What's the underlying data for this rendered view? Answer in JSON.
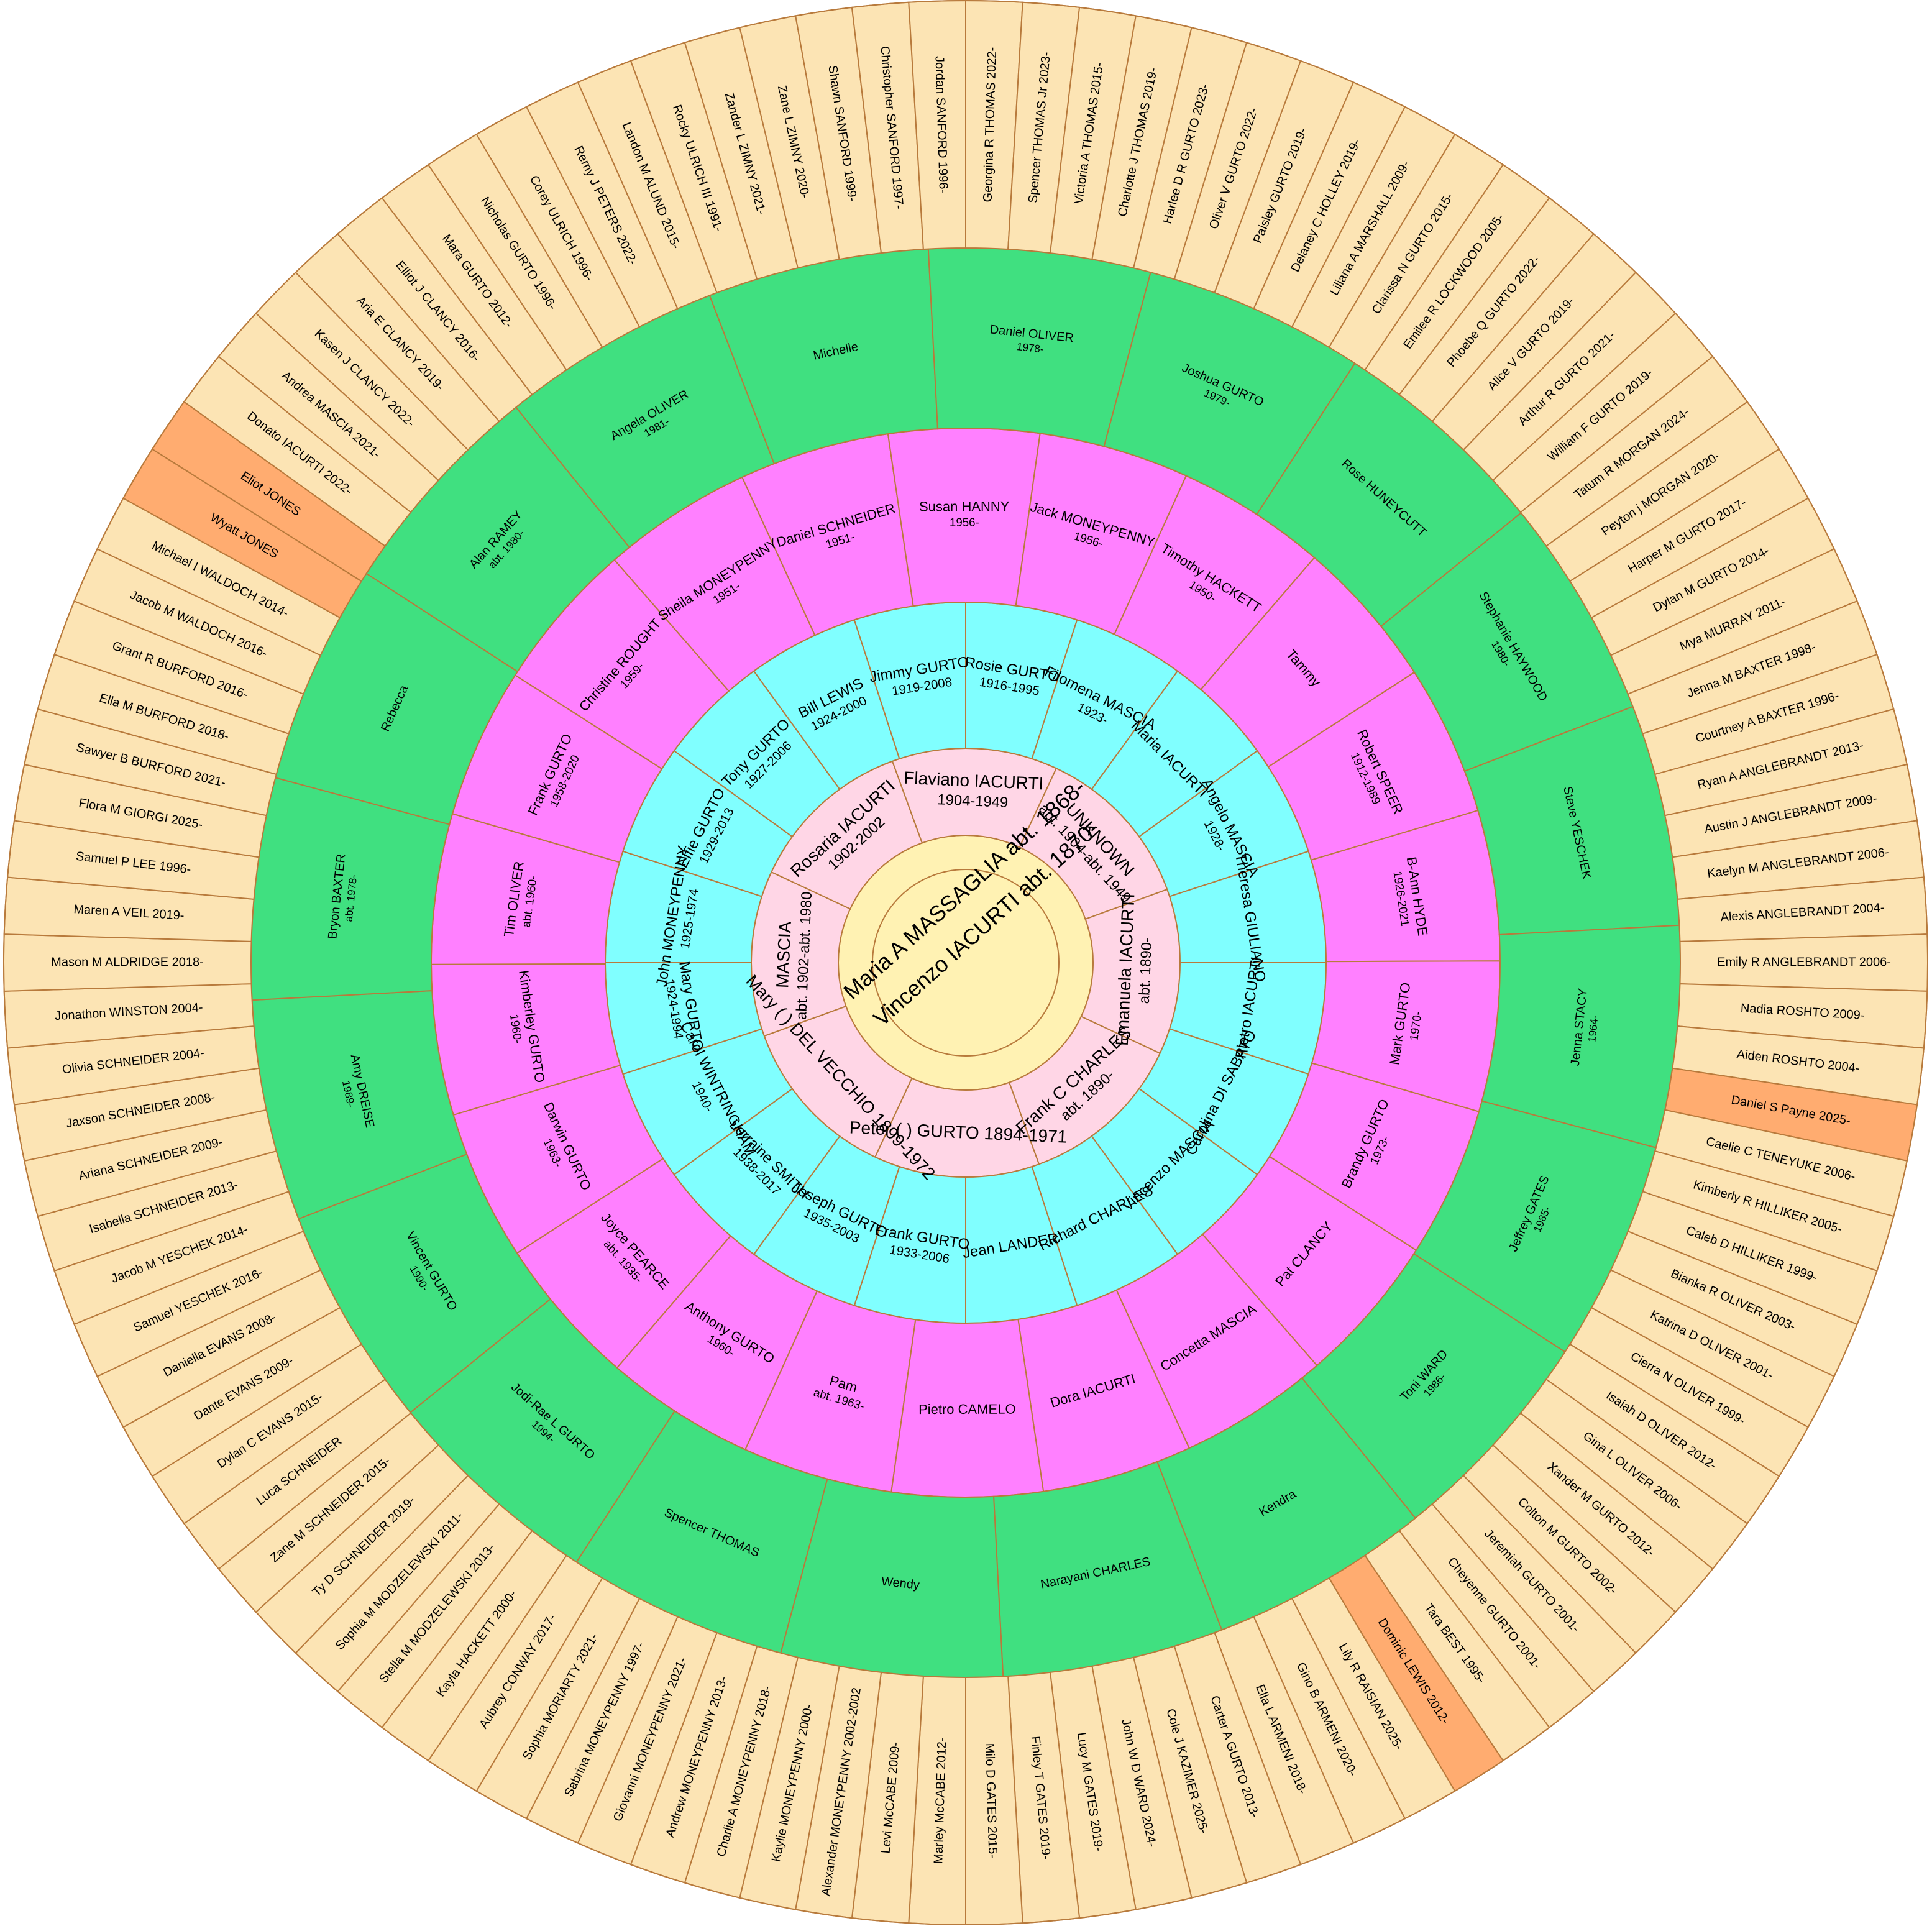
{
  "colors": {
    "ring0": "#fff2b3",
    "ring1": "#ffd6e6",
    "ring2": "#80ffff",
    "pink": "#ff80ff",
    "green": "#40e080",
    "tan": "#fce4b4",
    "orange": "#ffac70",
    "line": "#b87a3c",
    "background": "#ffffff"
  },
  "center": {
    "names": [
      "Maria A MASSAGLIA abt. 1868-",
      "Vincenzo IACURTI abt. 1870-"
    ]
  },
  "ring1": [
    {
      "name": "Peter ( ) GURTO 1894-1971",
      "lines": [],
      "color": "ring1"
    },
    {
      "name": "Mary ( ) DEL VECCHIO 1899-1972",
      "lines": [],
      "color": "ring1"
    },
    {
      "name": "MASCIA",
      "lines": [
        "abt. 1902-abt. 1980"
      ],
      "color": "ring1"
    },
    {
      "name": "Rosaria IACURTI",
      "lines": [
        "1902-2002"
      ],
      "color": "ring1"
    },
    {
      "name": "Flaviano IACURTI",
      "lines": [
        "1904-1949"
      ],
      "color": "ring1"
    },
    {
      "name": "UNKNOWN",
      "lines": [
        "abt. 1904-abt. 1949"
      ],
      "color": "ring1"
    },
    {
      "name": "Emanuela IACURTI",
      "lines": [
        "abt. 1890-"
      ],
      "color": "ring1"
    },
    {
      "name": "Frank C CHARLES",
      "lines": [
        "abt. 1890-"
      ],
      "color": "ring1"
    }
  ],
  "ring2": [
    {
      "name": "Frank GURTO",
      "lines": [
        "1933-2006"
      ],
      "color": "ring2"
    },
    {
      "name": "Joseph GURTO",
      "lines": [
        "1935-2003"
      ],
      "color": "ring2"
    },
    {
      "name": "Lorraine SMITH",
      "lines": [
        "1938-2017"
      ],
      "color": "ring2"
    },
    {
      "name": "Carol WINTRINGHAM",
      "lines": [
        "1940-"
      ],
      "color": "ring2"
    },
    {
      "name": "Mary GURTO",
      "lines": [
        "1924-1994"
      ],
      "color": "ring2"
    },
    {
      "name": "John MONEYPENNY",
      "lines": [
        "1925-1974"
      ],
      "color": "ring2"
    },
    {
      "name": "Effie GURTO",
      "lines": [
        "1929-2013"
      ],
      "color": "ring2"
    },
    {
      "name": "Tony GURTO",
      "lines": [
        "1927-2006"
      ],
      "color": "ring2"
    },
    {
      "name": "Bill LEWIS",
      "lines": [
        "1924-2000"
      ],
      "color": "ring2"
    },
    {
      "name": "Jimmy GURTO",
      "lines": [
        "1919-2008"
      ],
      "color": "ring2"
    },
    {
      "name": "Rosie GURTO",
      "lines": [
        "1916-1995"
      ],
      "color": "ring2"
    },
    {
      "name": "Filomena MASCIA",
      "lines": [
        "1923-"
      ],
      "color": "ring2"
    },
    {
      "name": "Maria IACURTI",
      "lines": [],
      "color": "ring2"
    },
    {
      "name": "Angelo MASCIA",
      "lines": [
        "1928-"
      ],
      "color": "ring2"
    },
    {
      "name": "Theresa GIULIANO",
      "lines": [],
      "color": "ring2"
    },
    {
      "name": "Pietro IACURTI",
      "lines": [],
      "color": "ring2"
    },
    {
      "name": "Carolina DI SABATO",
      "lines": [],
      "color": "ring2"
    },
    {
      "name": "Vincenzo MASCIA",
      "lines": [],
      "color": "ring2"
    },
    {
      "name": "Richard CHARLES",
      "lines": [],
      "color": "ring2"
    },
    {
      "name": "Jean LANDER",
      "lines": [],
      "color": "ring2"
    }
  ],
  "ring3": [
    {
      "name": "Pam",
      "lines": [
        "abt. 1963-"
      ],
      "color": "pink"
    },
    {
      "name": "Anthony GURTO",
      "lines": [
        "1960-"
      ],
      "color": "pink"
    },
    {
      "name": "Joyce PEARCE",
      "lines": [
        "abt. 1935-"
      ],
      "color": "pink"
    },
    {
      "name": "Darwin GURTO",
      "lines": [
        "1963-"
      ],
      "color": "pink"
    },
    {
      "name": "Kimberley GURTO",
      "lines": [
        "1960-"
      ],
      "color": "pink"
    },
    {
      "name": "Tim OLIVER",
      "lines": [
        "abt. 1960-"
      ],
      "color": "pink"
    },
    {
      "name": "Frank GURTO",
      "lines": [
        "1958-2020"
      ],
      "color": "pink"
    },
    {
      "name": "Christine ROUGHT",
      "lines": [
        "1959-"
      ],
      "color": "pink"
    },
    {
      "name": "Sheila MONEYPENNY",
      "lines": [
        "1951-"
      ],
      "color": "pink"
    },
    {
      "name": "Daniel SCHNEIDER",
      "lines": [
        "1951-"
      ],
      "color": "pink"
    },
    {
      "name": "Susan HANNY",
      "lines": [
        "1956-"
      ],
      "color": "pink"
    },
    {
      "name": "Jack MONEYPENNY",
      "lines": [
        "1956-"
      ],
      "color": "pink"
    },
    {
      "name": "Timothy HACKETT",
      "lines": [
        "1950-"
      ],
      "color": "pink"
    },
    {
      "name": "Tammy",
      "lines": [],
      "color": "pink"
    },
    {
      "name": "Robert SPEER",
      "lines": [
        "1912-1989"
      ],
      "color": "pink"
    },
    {
      "name": "B-Ann HYDE",
      "lines": [
        "1926-2021"
      ],
      "color": "pink"
    },
    {
      "name": "Mark GURTO",
      "lines": [
        "1970-"
      ],
      "color": "pink"
    },
    {
      "name": "Brandy GURTO",
      "lines": [
        "1973-"
      ],
      "color": "pink"
    },
    {
      "name": "Pat CLANCY",
      "lines": [],
      "color": "pink"
    },
    {
      "name": "Concetta MASCIA",
      "lines": [],
      "color": "pink"
    },
    {
      "name": "Dora IACURTI",
      "lines": [],
      "color": "pink"
    },
    {
      "name": "Pietro CAMELO",
      "lines": [],
      "color": "pink"
    }
  ],
  "ring4": [
    {
      "name": "Spencer THOMAS",
      "lines": [],
      "color": "green"
    },
    {
      "name": "Jodi-Rae L GURTO",
      "lines": [
        "1994-"
      ],
      "color": "green"
    },
    {
      "name": "Vincent GURTO",
      "lines": [
        "1990-"
      ],
      "color": "green"
    },
    {
      "name": "Amy DREISE",
      "lines": [
        "1989-"
      ],
      "color": "green"
    },
    {
      "name": "Bryon BAXTER",
      "lines": [
        "abt. 1978-"
      ],
      "color": "green"
    },
    {
      "name": "Rebecca",
      "lines": [],
      "color": "green"
    },
    {
      "name": "Alan RAMEY",
      "lines": [
        "abt. 1980-"
      ],
      "color": "green"
    },
    {
      "name": "Angela OLIVER",
      "lines": [
        "1981-"
      ],
      "color": "green"
    },
    {
      "name": "Michelle",
      "lines": [],
      "color": "green"
    },
    {
      "name": "Daniel OLIVER",
      "lines": [
        "1978-"
      ],
      "color": "green"
    },
    {
      "name": "Joshua GURTO",
      "lines": [
        "1979-"
      ],
      "color": "green"
    },
    {
      "name": "Rose HUNEYCUTT",
      "lines": [],
      "color": "green"
    },
    {
      "name": "Stephanie HAYWOOD",
      "lines": [
        "1980-"
      ],
      "color": "green"
    },
    {
      "name": "Steve YESCHEK",
      "lines": [],
      "color": "green"
    },
    {
      "name": "Jenna STACY",
      "lines": [
        "1964-"
      ],
      "color": "green"
    },
    {
      "name": "Jeffrey GATES",
      "lines": [
        "1985-"
      ],
      "color": "green"
    },
    {
      "name": "Toni WARD",
      "lines": [
        "1986-"
      ],
      "color": "green"
    },
    {
      "name": "Kendra",
      "lines": [],
      "color": "green"
    },
    {
      "name": "Narayani CHARLES",
      "lines": [],
      "color": "green"
    },
    {
      "name": "Wendy",
      "lines": [],
      "color": "green"
    }
  ],
  "ring5": [
    {
      "name": "Georgina R THOMAS 2022-",
      "color": "tan"
    },
    {
      "name": "Spencer THOMAS Jr 2023-",
      "color": "tan"
    },
    {
      "name": "Victoria A THOMAS 2015-",
      "color": "tan"
    },
    {
      "name": "Charlotte J THOMAS 2019-",
      "color": "tan"
    },
    {
      "name": "Harlee D R GURTO 2023-",
      "color": "tan"
    },
    {
      "name": "Oliver V GURTO 2022-",
      "color": "tan"
    },
    {
      "name": "Paisley GURTO 2019-",
      "color": "tan"
    },
    {
      "name": "Delaney C HOLLEY 2019-",
      "color": "tan"
    },
    {
      "name": "Liliana A MARSHALL 2009-",
      "color": "tan"
    },
    {
      "name": "Clarissa N GURTO 2015-",
      "color": "tan"
    },
    {
      "name": "Emilee R LOCKWOOD 2005-",
      "color": "tan"
    },
    {
      "name": "Phoebe Q GURTO 2022-",
      "color": "tan"
    },
    {
      "name": "Alice V GURTO 2019-",
      "color": "tan"
    },
    {
      "name": "Arthur R GURTO 2021-",
      "color": "tan"
    },
    {
      "name": "William F GURTO 2019-",
      "color": "tan"
    },
    {
      "name": "Tatum R MORGAN 2024-",
      "color": "tan"
    },
    {
      "name": "Peyton j MORGAN 2020-",
      "color": "tan"
    },
    {
      "name": "Harper M GURTO 2017-",
      "color": "tan"
    },
    {
      "name": "Dylan M GURTO 2014-",
      "color": "tan"
    },
    {
      "name": "Mya MURRAY 2011-",
      "color": "tan"
    },
    {
      "name": "Jenna M BAXTER 1998-",
      "color": "tan"
    },
    {
      "name": "Courtney A BAXTER 1996-",
      "color": "tan"
    },
    {
      "name": "Ryan A ANGLEBRANDT 2013-",
      "color": "tan"
    },
    {
      "name": "Austin J ANGLEBRANDT 2009-",
      "color": "tan"
    },
    {
      "name": "Kaelyn M ANGLEBRANDT 2006-",
      "color": "tan"
    },
    {
      "name": "Alexis ANGLEBRANDT 2004-",
      "color": "tan"
    },
    {
      "name": "Emily R ANGLEBRANDT 2006-",
      "color": "tan"
    },
    {
      "name": "Nadia ROSHTO 2009-",
      "color": "tan"
    },
    {
      "name": "Aiden ROSHTO 2004-",
      "color": "tan"
    },
    {
      "name": "Daniel S Payne 2025-",
      "color": "orange"
    },
    {
      "name": "Caelie C TENEYUKE 2006-",
      "color": "tan"
    },
    {
      "name": "Kimberly R HILLIKER 2005-",
      "color": "tan"
    },
    {
      "name": "Caleb D HILLIKER 1999-",
      "color": "tan"
    },
    {
      "name": "Bianka R OLIVER 2003-",
      "color": "tan"
    },
    {
      "name": "Katrina D OLIVER 2001-",
      "color": "tan"
    },
    {
      "name": "Cierra N OLIVER 1999-",
      "color": "tan"
    },
    {
      "name": "Isaiah D OLIVER 2012-",
      "color": "tan"
    },
    {
      "name": "Gina L OLIVER 2006-",
      "color": "tan"
    },
    {
      "name": "Xander M GURTO 2012-",
      "color": "tan"
    },
    {
      "name": "Colton M GURTO 2002-",
      "color": "tan"
    },
    {
      "name": "Jeremiah GURTO 2001-",
      "color": "tan"
    },
    {
      "name": "Cheyenne GURTO 2001-",
      "color": "tan"
    },
    {
      "name": "Tara BEST 1995-",
      "color": "tan"
    },
    {
      "name": "Dominic LEWIS 2012-",
      "color": "orange"
    },
    {
      "name": "Lily R RAISIAN 2025-",
      "color": "tan"
    },
    {
      "name": "Gino B ARMENI 2020-",
      "color": "tan"
    },
    {
      "name": "Ella L ARMENI 2018-",
      "color": "tan"
    },
    {
      "name": "Carter A GURTO 2013-",
      "color": "tan"
    },
    {
      "name": "Cole J KAZIMER 2025-",
      "color": "tan"
    },
    {
      "name": "John W D WARD 2024-",
      "color": "tan"
    },
    {
      "name": "Lucy M GATES 2019-",
      "color": "tan"
    },
    {
      "name": "Finley T GATES 2019-",
      "color": "tan"
    },
    {
      "name": "Milo D GATES 2015-",
      "color": "tan"
    },
    {
      "name": "Marley McCABE 2012-",
      "color": "tan"
    },
    {
      "name": "Levi McCABE 2009-",
      "color": "tan"
    },
    {
      "name": "Alexander MONEYPENNY 2002-2002",
      "color": "tan"
    },
    {
      "name": "Kaylie MONEYPENNY 2000-",
      "color": "tan"
    },
    {
      "name": "Charlie A MONEYPENNY 2018-",
      "color": "tan"
    },
    {
      "name": "Andrew MONEYPENNY 2013-",
      "color": "tan"
    },
    {
      "name": "Giovanni MONEYPENNY 2021-",
      "color": "tan"
    },
    {
      "name": "Sabrina MONEYPENNY 1997-",
      "color": "tan"
    },
    {
      "name": "Sophia MORIARTY 2021-",
      "color": "tan"
    },
    {
      "name": "Aubrey CONWAY 2017-",
      "color": "tan"
    },
    {
      "name": "Kayla HACKETT 2000-",
      "color": "tan"
    },
    {
      "name": "Stella M MODZELEWSKI 2013-",
      "color": "tan"
    },
    {
      "name": "Sophia M MODZELEWSKI 2011-",
      "color": "tan"
    },
    {
      "name": "Ty D SCHNEIDER 2019-",
      "color": "tan"
    },
    {
      "name": "Zane M SCHNEIDER 2015-",
      "color": "tan"
    },
    {
      "name": "Luca SCHNEIDER",
      "color": "tan"
    },
    {
      "name": "Dylan C EVANS 2015-",
      "color": "tan"
    },
    {
      "name": "Dante EVANS 2009-",
      "color": "tan"
    },
    {
      "name": "Daniella EVANS 2008-",
      "color": "tan"
    },
    {
      "name": "Samuel YESCHEK 2016-",
      "color": "tan"
    },
    {
      "name": "Jacob M YESCHEK 2014-",
      "color": "tan"
    },
    {
      "name": "Isabella SCHNEIDER 2013-",
      "color": "tan"
    },
    {
      "name": "Ariana SCHNEIDER 2009-",
      "color": "tan"
    },
    {
      "name": "Jaxson SCHNEIDER 2008-",
      "color": "tan"
    },
    {
      "name": "Olivia SCHNEIDER 2004-",
      "color": "tan"
    },
    {
      "name": "Jonathon WINSTON 2004-",
      "color": "tan"
    },
    {
      "name": "Mason M ALDRIDGE 2018-",
      "color": "tan"
    },
    {
      "name": "Maren A VEIL 2019-",
      "color": "tan"
    },
    {
      "name": "Samuel P LEE 1996-",
      "color": "tan"
    },
    {
      "name": "Flora M GIORGI 2025-",
      "color": "tan"
    },
    {
      "name": "Sawyer B BURFORD 2021-",
      "color": "tan"
    },
    {
      "name": "Ella M BURFORD 2018-",
      "color": "tan"
    },
    {
      "name": "Grant R BURFORD 2016-",
      "color": "tan"
    },
    {
      "name": "Jacob M WALDOCH 2016-",
      "color": "tan"
    },
    {
      "name": "Michael I WALDOCH 2014-",
      "color": "tan"
    },
    {
      "name": "Wyatt JONES",
      "color": "orange"
    },
    {
      "name": "Eliot JONES",
      "color": "orange"
    },
    {
      "name": "Donato IACURTI 2022-",
      "color": "tan"
    },
    {
      "name": "Andrea MASCIA 2021-",
      "color": "tan"
    },
    {
      "name": "Kasen J CLANCY 2022-",
      "color": "tan"
    },
    {
      "name": "Aria E CLANCY 2019-",
      "color": "tan"
    },
    {
      "name": "Elliot J CLANCY 2016-",
      "color": "tan"
    },
    {
      "name": "Mara GURTO 2012-",
      "color": "tan"
    },
    {
      "name": "Nicholas GURTO 1996-",
      "color": "tan"
    },
    {
      "name": "Corey ULRICH 1996-",
      "color": "tan"
    },
    {
      "name": "Remy J PETERS 2022-",
      "color": "tan"
    },
    {
      "name": "Landon M ALUND 2015-",
      "color": "tan"
    },
    {
      "name": "Rocky ULRICH III 1991-",
      "color": "tan"
    },
    {
      "name": "Zander L ZIMNY 2021-",
      "color": "tan"
    },
    {
      "name": "Zane L ZIMNY 2020-",
      "color": "tan"
    },
    {
      "name": "Shawn SANFORD 1999-",
      "color": "tan"
    },
    {
      "name": "Christopher SANFORD 1997-",
      "color": "tan"
    },
    {
      "name": "Jordan SANFORD 1996-",
      "color": "tan"
    }
  ]
}
